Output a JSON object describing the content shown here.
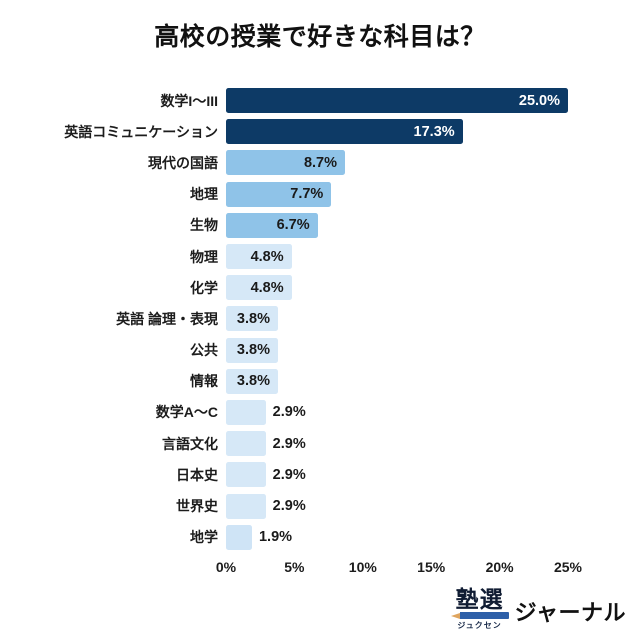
{
  "page": {
    "background": "#ffffff"
  },
  "chart_data": {
    "type": "bar",
    "orientation": "horizontal",
    "title": "高校の授業で好きな科目は？",
    "xlabel": "",
    "ylabel": "",
    "xlim": [
      0,
      25
    ],
    "grid": false,
    "legend": "none",
    "x_ticks": [
      {
        "value": 0,
        "label": "0%"
      },
      {
        "value": 5,
        "label": "5%"
      },
      {
        "value": 10,
        "label": "10%"
      },
      {
        "value": 15,
        "label": "15%"
      },
      {
        "value": 20,
        "label": "20%"
      },
      {
        "value": 25,
        "label": "25%"
      }
    ],
    "palette": {
      "dark_navy": "#0d3a66",
      "medium_blue": "#8fc3e8",
      "light_blue": "#d6e8f7",
      "value_text_dark": "#1a1a1a",
      "value_text_light": "#ffffff"
    },
    "bars": [
      {
        "category": "数学I〜III",
        "value": 25.0,
        "label": "25.0%",
        "color": "#0d3a66",
        "label_position": "inside",
        "label_color": "#ffffff"
      },
      {
        "category": "英語コミュニケーション",
        "value": 17.3,
        "label": "17.3%",
        "color": "#0d3a66",
        "label_position": "inside",
        "label_color": "#ffffff"
      },
      {
        "category": "現代の国語",
        "value": 8.7,
        "label": "8.7%",
        "color": "#8fc3e8",
        "label_position": "inside",
        "label_color": "#1a1a1a"
      },
      {
        "category": "地理",
        "value": 7.7,
        "label": "7.7%",
        "color": "#8fc3e8",
        "label_position": "inside",
        "label_color": "#1a1a1a"
      },
      {
        "category": "生物",
        "value": 6.7,
        "label": "6.7%",
        "color": "#8fc3e8",
        "label_position": "inside",
        "label_color": "#1a1a1a"
      },
      {
        "category": "物理",
        "value": 4.8,
        "label": "4.8%",
        "color": "#d6e8f7",
        "label_position": "inside",
        "label_color": "#1a1a1a"
      },
      {
        "category": "化学",
        "value": 4.8,
        "label": "4.8%",
        "color": "#d6e8f7",
        "label_position": "inside",
        "label_color": "#1a1a1a"
      },
      {
        "category": "英語 論理・表現",
        "value": 3.8,
        "label": "3.8%",
        "color": "#d6e8f7",
        "label_position": "inside",
        "label_color": "#1a1a1a"
      },
      {
        "category": "公共",
        "value": 3.8,
        "label": "3.8%",
        "color": "#d6e8f7",
        "label_position": "inside",
        "label_color": "#1a1a1a"
      },
      {
        "category": "情報",
        "value": 3.8,
        "label": "3.8%",
        "color": "#d6e8f7",
        "label_position": "inside",
        "label_color": "#1a1a1a"
      },
      {
        "category": "数学A〜C",
        "value": 2.9,
        "label": "2.9%",
        "color": "#d6e8f7",
        "label_position": "outside",
        "label_color": "#1a1a1a"
      },
      {
        "category": "言語文化",
        "value": 2.9,
        "label": "2.9%",
        "color": "#d6e8f7",
        "label_position": "outside",
        "label_color": "#1a1a1a"
      },
      {
        "category": "日本史",
        "value": 2.9,
        "label": "2.9%",
        "color": "#d6e8f7",
        "label_position": "outside",
        "label_color": "#1a1a1a"
      },
      {
        "category": "世界史",
        "value": 2.9,
        "label": "2.9%",
        "color": "#d6e8f7",
        "label_position": "outside",
        "label_color": "#1a1a1a"
      },
      {
        "category": "地学",
        "value": 1.9,
        "label": "1.9%",
        "color": "#cfe4f6",
        "label_position": "outside",
        "label_color": "#1a1a1a"
      }
    ]
  },
  "logo": {
    "brand": "塾選",
    "furigana": "ジュクセン",
    "suffix": "ジャーナル",
    "pencil_color": "#2d5fa8"
  }
}
